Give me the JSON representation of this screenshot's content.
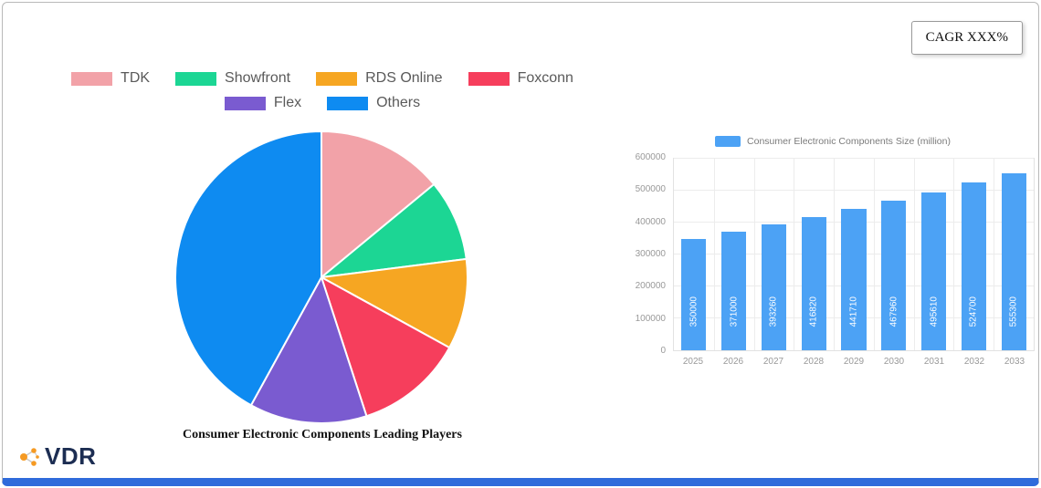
{
  "theme": {
    "card_accent": "#2F6BDB"
  },
  "cagr": {
    "label": "CAGR XXX%"
  },
  "logo": {
    "text": "VDR",
    "icon": "molecule-dots-icon",
    "icon_color": "#F59A23"
  },
  "chart_data": [
    {
      "type": "pie",
      "title": "Consumer Electronic Components Leading Players",
      "labels": [
        "TDK",
        "Showfront",
        "RDS Online",
        "Foxconn",
        "Flex",
        "Others"
      ],
      "values": [
        14,
        9,
        10,
        12,
        13,
        42
      ],
      "colors": [
        "#F2A2A8",
        "#1CD694",
        "#F6A622",
        "#F63E5C",
        "#7A5BD0",
        "#0E8BF1"
      ],
      "legend_position": "top",
      "legend_rows": [
        [
          "TDK",
          "Showfront",
          "RDS Online",
          "Foxconn"
        ],
        [
          "Flex",
          "Others"
        ]
      ],
      "start_angle": "12-oclock-clockwise"
    },
    {
      "type": "bar",
      "series_name": "Consumer Electronic Components Size (million)",
      "categories": [
        "2025",
        "2026",
        "2027",
        "2028",
        "2029",
        "2030",
        "2031",
        "2032",
        "2033"
      ],
      "values": [
        350000,
        371000,
        393260,
        416820,
        441710,
        467960,
        495610,
        524700,
        555300
      ],
      "bar_color": "#4CA2F5",
      "ylim": [
        0,
        600000
      ],
      "yticks": [
        0,
        100000,
        200000,
        300000,
        400000,
        500000,
        600000
      ],
      "grid": true,
      "legend_position": "top",
      "value_label_style": "inside-vertical-white"
    }
  ]
}
